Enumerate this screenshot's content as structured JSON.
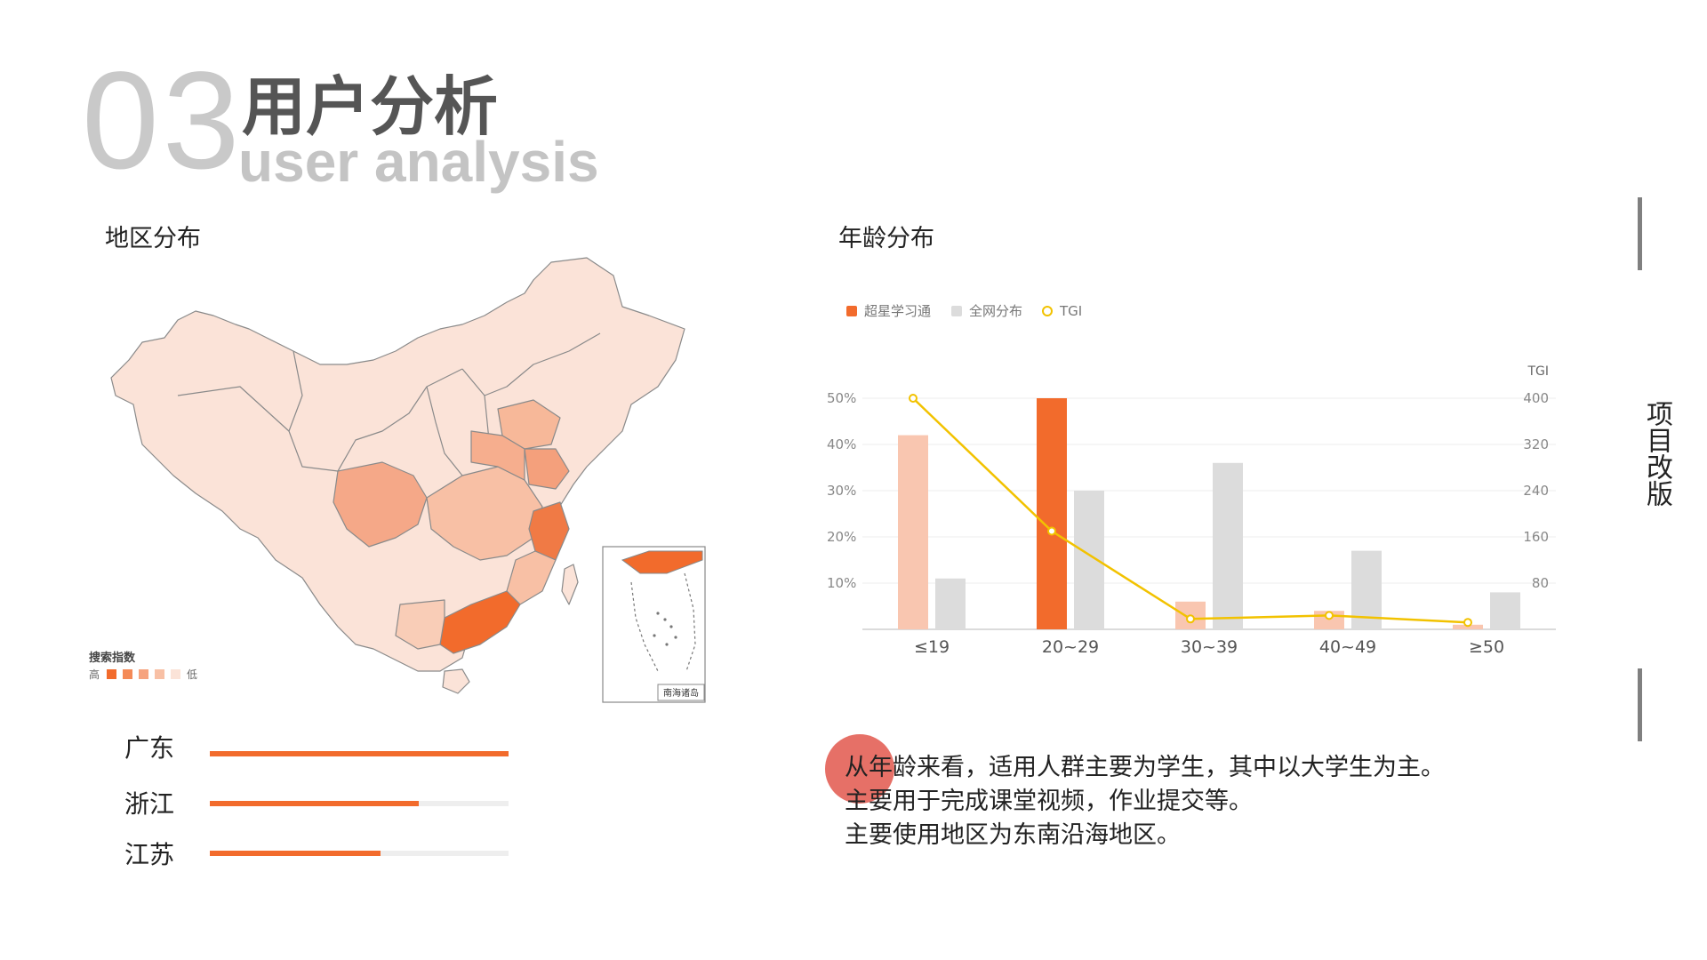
{
  "header": {
    "section_number": "03",
    "title_cn": "用户分析",
    "title_en": "user analysis"
  },
  "side_label": "项目改版",
  "region": {
    "label": "地区分布",
    "map_legend": {
      "title": "搜索指数",
      "high": "高",
      "low": "低",
      "inset_label": "南海诸岛"
    },
    "ranking": [
      {
        "name": "广东",
        "level": 1.0
      },
      {
        "name": "浙江",
        "level": 0.7
      },
      {
        "name": "江苏",
        "level": 0.57
      }
    ],
    "colors": {
      "bar": "#f26b2c",
      "track": "#eeeeee"
    }
  },
  "age": {
    "label": "年龄分布"
  },
  "chart_data": {
    "type": "bar",
    "categories": [
      "≤19",
      "20~29",
      "30~39",
      "40~49",
      "≥50"
    ],
    "series": [
      {
        "name": "超星学习通",
        "values": [
          42,
          50,
          6,
          4,
          1
        ],
        "color": "#f9c6b0",
        "highlight_color": "#f26b2c"
      },
      {
        "name": "全网分布",
        "values": [
          11,
          30,
          36,
          17,
          8
        ],
        "color": "#dcdcdc"
      },
      {
        "name": "TGI",
        "type": "line",
        "axis": "right",
        "values": [
          400,
          170,
          18,
          24,
          12
        ],
        "color": "#f2c200"
      }
    ],
    "y_left": {
      "ticks": [
        "50%",
        "40%",
        "30%",
        "20%",
        "10%"
      ],
      "ylim": [
        0,
        50
      ]
    },
    "y_right": {
      "label": "TGI",
      "ticks": [
        "400",
        "320",
        "240",
        "160",
        "80"
      ],
      "ylim": [
        0,
        400
      ]
    },
    "legend_position": "top-left",
    "grid": true
  },
  "description": [
    "从年龄来看，适用人群主要为学生，其中以大学生为主。",
    "主要用于完成课堂视频，作业提交等。",
    "主要使用地区为东南沿海地区。"
  ]
}
